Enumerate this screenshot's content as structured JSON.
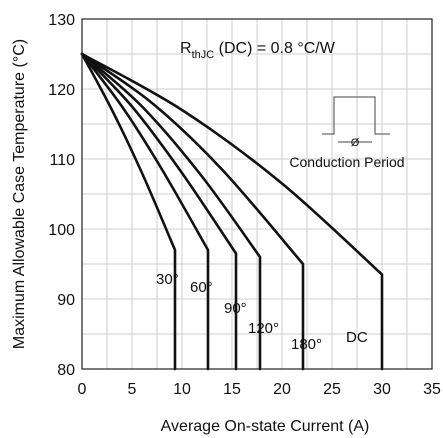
{
  "chart_data": {
    "type": "line",
    "xlabel": "Average On-state Current (A)",
    "ylabel": "Maximum Allowable Case Temperature (°C)",
    "xlim": [
      0,
      35
    ],
    "ylim": [
      80,
      130
    ],
    "xticks": [
      0,
      5,
      10,
      15,
      20,
      25,
      30,
      35
    ],
    "yticks": [
      80,
      90,
      100,
      110,
      120,
      130
    ],
    "grid": true,
    "annotation": {
      "rthjc_main": "R",
      "rthjc_sub": "thJC",
      "rthjc_rest": " (DC) = 0.8 °C/W",
      "conduction_label": "Conduction Period",
      "phi_symbol": "Ø"
    },
    "series": [
      {
        "name": "30°",
        "x": [
          0,
          3,
          6,
          9.3,
          9.3
        ],
        "y": [
          125,
          117,
          108,
          97,
          80
        ]
      },
      {
        "name": "60°",
        "x": [
          0,
          4,
          8,
          12.6,
          12.6
        ],
        "y": [
          125,
          117.5,
          108.5,
          97,
          80
        ]
      },
      {
        "name": "90°",
        "x": [
          0,
          5,
          10,
          15.4,
          15.4
        ],
        "y": [
          125,
          117.5,
          108,
          96.5,
          80
        ]
      },
      {
        "name": "120°",
        "x": [
          0,
          6,
          12,
          17.8,
          17.8
        ],
        "y": [
          125,
          117.5,
          107.5,
          96,
          80
        ]
      },
      {
        "name": "180°",
        "x": [
          0,
          7,
          14,
          22.1,
          22.1
        ],
        "y": [
          125,
          118,
          108.5,
          95,
          80
        ]
      },
      {
        "name": "DC",
        "x": [
          0,
          10,
          20,
          30,
          30
        ],
        "y": [
          125,
          117,
          106.5,
          93.5,
          80
        ]
      }
    ]
  }
}
